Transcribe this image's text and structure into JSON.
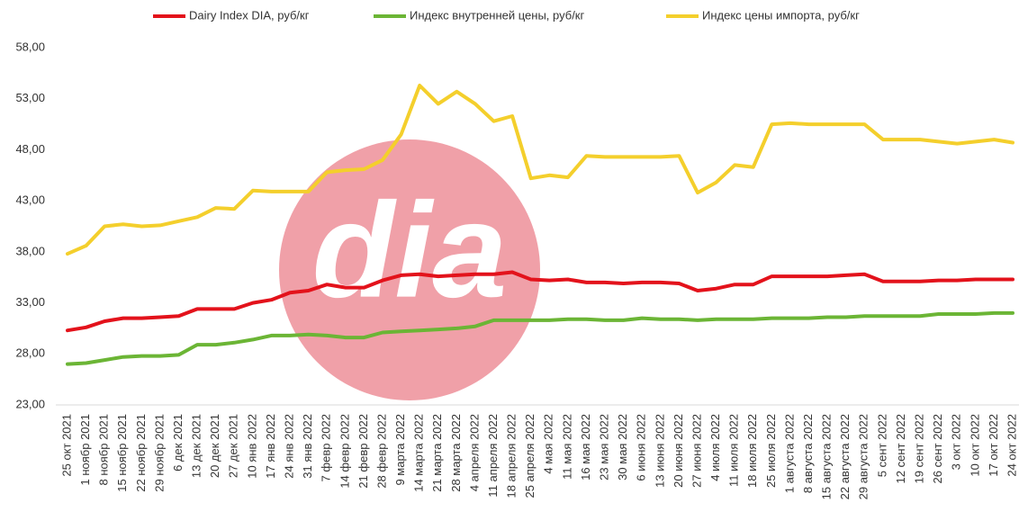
{
  "chart_data": {
    "type": "line",
    "logo": "dia",
    "categories": [
      "25 окт 2021",
      "1 ноябр 2021",
      "8 ноябр 2021",
      "15 ноябр 2021",
      "22 ноябр 2021",
      "29 ноябр 2021",
      "6 дек 2021",
      "13 дек 2021",
      "20 дек 2021",
      "27 дек 2021",
      "10 янв 2022",
      "17 янв 2022",
      "24 янв 2022",
      "31 янв 2022",
      "7 февр 2022",
      "14 февр 2022",
      "21 февр 2022",
      "28 февр 2022",
      "9 марта 2022",
      "14 марта 2022",
      "21 марта 2022",
      "28 марта 2022",
      "4 апреля 2022",
      "11 апреля 2022",
      "18 апреля 2022",
      "25 апреля 2022",
      "4 мая 2022",
      "11 мая 2022",
      "16 мая 2022",
      "23 мая 2022",
      "30 мая 2022",
      "6 июня 2022",
      "13 июня 2022",
      "20 июня 2022",
      "27 июня 2022",
      "4 июля 2022",
      "11 июля 2022",
      "18 июля 2022",
      "25 июля 2022",
      "1 августа 2022",
      "8 августа 2022",
      "15 августа 2022",
      "22 августа 2022",
      "29 августа 2022",
      "5 сент 2022",
      "12 сент 2022",
      "19 сент 2022",
      "26 сент 2022",
      "3 окт 2022",
      "10 окт 2022",
      "17 окт 2022",
      "24 окт 2022"
    ],
    "series": [
      {
        "name": "Dairy Index DIA,  руб/кг",
        "color": "#e3121b",
        "values": [
          30.3,
          30.6,
          31.2,
          31.5,
          31.5,
          31.6,
          31.7,
          32.4,
          32.4,
          32.4,
          33.0,
          33.3,
          34.0,
          34.2,
          34.8,
          34.5,
          34.5,
          35.2,
          35.7,
          35.8,
          35.6,
          35.7,
          35.8,
          35.8,
          36.0,
          35.3,
          35.2,
          35.3,
          35.0,
          35.0,
          34.9,
          35.0,
          35.0,
          34.9,
          34.2,
          34.4,
          34.8,
          34.8,
          35.6,
          35.6,
          35.6,
          35.6,
          35.7,
          35.8,
          35.1,
          35.1,
          35.1,
          35.2,
          35.2,
          35.3,
          35.3,
          35.3
        ]
      },
      {
        "name": "Индекс внутренней цены, руб/кг",
        "color": "#6bb535",
        "values": [
          27.0,
          27.1,
          27.4,
          27.7,
          27.8,
          27.8,
          27.9,
          28.9,
          28.9,
          29.1,
          29.4,
          29.8,
          29.8,
          29.9,
          29.8,
          29.6,
          29.6,
          30.1,
          30.2,
          30.3,
          30.4,
          30.5,
          30.7,
          31.3,
          31.3,
          31.3,
          31.3,
          31.4,
          31.4,
          31.3,
          31.3,
          31.5,
          31.4,
          31.4,
          31.3,
          31.4,
          31.4,
          31.4,
          31.5,
          31.5,
          31.5,
          31.6,
          31.6,
          31.7,
          31.7,
          31.7,
          31.7,
          31.9,
          31.9,
          31.9,
          32.0,
          32.0
        ]
      },
      {
        "name": "Индекс цены импорта, руб/кг",
        "color": "#f4cf2c",
        "values": [
          37.8,
          38.6,
          40.5,
          40.7,
          40.5,
          40.6,
          41.0,
          41.4,
          42.3,
          42.2,
          44.0,
          43.9,
          43.9,
          43.9,
          45.8,
          46.0,
          46.1,
          47.0,
          49.5,
          54.3,
          52.5,
          53.7,
          52.5,
          50.8,
          51.3,
          45.2,
          45.5,
          45.3,
          47.4,
          47.3,
          47.3,
          47.3,
          47.3,
          47.4,
          43.8,
          44.8,
          46.5,
          46.3,
          50.5,
          50.6,
          50.5,
          50.5,
          50.5,
          50.5,
          49.0,
          49.0,
          49.0,
          48.8,
          48.6,
          48.8,
          49.0,
          48.7
        ]
      }
    ],
    "ylim": [
      23,
      58
    ],
    "yticks": [
      {
        "value": 23,
        "label": "23,00"
      },
      {
        "value": 28,
        "label": "28,00"
      },
      {
        "value": 33,
        "label": "33,00"
      },
      {
        "value": 38,
        "label": "38,00"
      },
      {
        "value": 43,
        "label": "43,00"
      },
      {
        "value": 48,
        "label": "48,00"
      },
      {
        "value": 53,
        "label": "53,00"
      },
      {
        "value": 58,
        "label": "58,00"
      }
    ],
    "grid": false
  }
}
